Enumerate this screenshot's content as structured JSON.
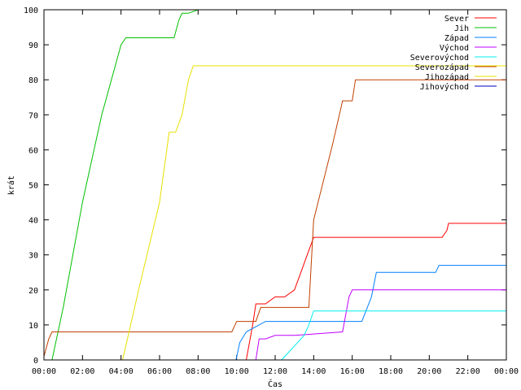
{
  "chart_data": {
    "type": "line",
    "xlabel": "Čas",
    "ylabel": "krát",
    "xlim": [
      "00:00",
      "24:00"
    ],
    "ylim": [
      0,
      100
    ],
    "grid": false,
    "legend_position": "top-right",
    "x_ticks": [
      "00:00",
      "02:00",
      "04:00",
      "06:00",
      "08:00",
      "10:00",
      "12:00",
      "14:00",
      "16:00",
      "18:00",
      "20:00",
      "22:00",
      "00:00"
    ],
    "y_ticks": [
      "0",
      "10",
      "20",
      "30",
      "40",
      "50",
      "60",
      "70",
      "80",
      "90",
      "100"
    ],
    "series": [
      {
        "name": "Sever",
        "color": "#ff0000",
        "x": [
          "00:00",
          "10:30",
          "10:50",
          "11:00",
          "11:30",
          "12:00",
          "12:30",
          "13:00",
          "13:20",
          "13:40",
          "14:00",
          "15:00",
          "18:00",
          "20:00",
          "20:40",
          "20:55",
          "21:00",
          "24:00"
        ],
        "y": [
          0,
          0,
          10,
          16,
          16,
          18,
          18,
          20,
          25,
          30,
          35,
          35,
          35,
          35,
          35,
          37,
          39,
          39
        ]
      },
      {
        "name": "Jih",
        "color": "#00c000",
        "x": [
          "00:00",
          "00:25",
          "01:00",
          "02:00",
          "03:00",
          "04:00",
          "04:15",
          "05:00",
          "06:00",
          "06:45",
          "07:00",
          "07:10",
          "07:30",
          "08:00"
        ],
        "y": [
          0,
          0,
          15,
          45,
          70,
          90,
          92,
          92,
          92,
          92,
          97,
          99,
          99,
          100
        ]
      },
      {
        "name": "Západ",
        "color": "#0080ff",
        "x": [
          "00:00",
          "09:58",
          "10:10",
          "10:30",
          "11:30",
          "13:00",
          "16:00",
          "16:30",
          "17:00",
          "17:15",
          "18:00",
          "20:00",
          "20:20",
          "20:30",
          "24:00"
        ],
        "y": [
          0,
          0,
          5,
          8,
          11,
          11,
          11,
          11,
          18,
          25,
          25,
          25,
          25,
          27,
          27
        ]
      },
      {
        "name": "Východ",
        "color": "#c000ff",
        "x": [
          "00:00",
          "11:00",
          "11:10",
          "11:30",
          "12:00",
          "13:00",
          "15:30",
          "15:50",
          "16:00",
          "24:00"
        ],
        "y": [
          0,
          0,
          6,
          6,
          7,
          7,
          8,
          18,
          20,
          20
        ]
      },
      {
        "name": "Severovýchod",
        "color": "#00eeee",
        "x": [
          "00:00",
          "12:20",
          "12:40",
          "13:00",
          "13:30",
          "13:45",
          "14:00",
          "24:00"
        ],
        "y": [
          0,
          0,
          2,
          4,
          7,
          10,
          14,
          14
        ]
      },
      {
        "name": "Severozápad",
        "color": "#c04000",
        "x": [
          "00:00",
          "00:15",
          "00:25",
          "01:00",
          "09:45",
          "10:00",
          "11:00",
          "11:15",
          "13:45",
          "14:00",
          "15:00",
          "15:30",
          "16:00",
          "16:10",
          "16:30",
          "17:00",
          "24:00"
        ],
        "y": [
          1,
          6,
          8,
          8,
          8,
          11,
          11,
          15,
          15,
          40,
          62,
          74,
          74,
          80,
          80,
          80,
          80
        ]
      },
      {
        "name": "Jihozápad",
        "color": "#e8e000",
        "x": [
          "00:00",
          "04:05",
          "05:00",
          "06:00",
          "06:30",
          "06:50",
          "07:10",
          "07:30",
          "07:45",
          "08:00",
          "24:00"
        ],
        "y": [
          0,
          0,
          22,
          45,
          65,
          65,
          70,
          80,
          84,
          84,
          84
        ]
      },
      {
        "name": "Jihovýchod",
        "color": "#0000c0",
        "x": [
          "00:00",
          "24:00"
        ],
        "y": [
          0,
          0
        ]
      }
    ]
  }
}
